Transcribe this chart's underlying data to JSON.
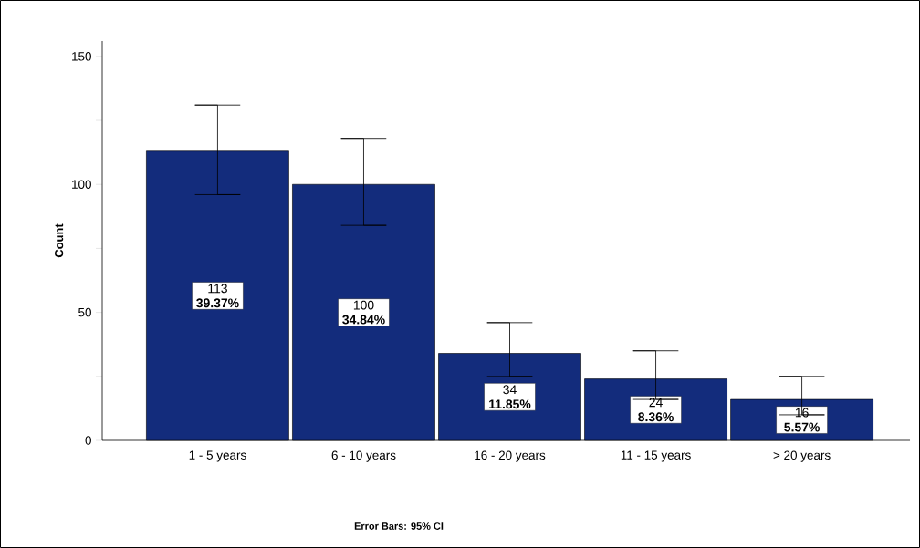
{
  "chart_data": {
    "type": "bar",
    "categories": [
      "1 - 5 years",
      "6 - 10 years",
      "16 - 20 years",
      "11 - 15 years",
      "> 20 years"
    ],
    "values": [
      113,
      100,
      34,
      24,
      16
    ],
    "color": "#132c7c",
    "errors": [
      [
        96,
        131
      ],
      [
        84,
        118
      ],
      [
        25,
        46
      ],
      [
        16,
        35
      ],
      [
        10,
        25
      ]
    ],
    "value_labels": [
      "113 **39.37%**",
      "100 **34.84%**",
      "34 **11.85%**",
      "24 **8.36%**",
      "16 **5.57%**"
    ],
    "annotations": [
      "Error Bars: 95% CI"
    ],
    "ylabel": "Count",
    "ylim": [
      0,
      156
    ],
    "yticks": [
      0,
      {
        "value": 25,
        "label": null
      },
      50,
      {
        "value": 75,
        "label": null
      },
      100,
      {
        "value": 125,
        "label": null
      },
      150
    ]
  }
}
